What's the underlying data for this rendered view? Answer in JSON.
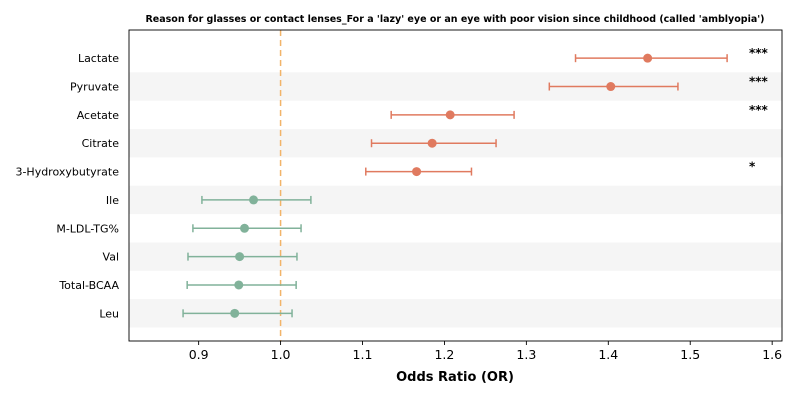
{
  "chart_data": {
    "type": "forest",
    "title": "Reason for glasses or contact lenses_For a 'lazy' eye or an eye with poor vision since childhood (called 'amblyopia')",
    "xlabel": "Odds Ratio (OR)",
    "xlim": [
      0.815,
      1.612
    ],
    "xticks": [
      "0.9",
      "1.0",
      "1.1",
      "1.2",
      "1.3",
      "1.4",
      "1.5",
      "1.6"
    ],
    "reference_line": 1.0,
    "colors": {
      "positive": "#E07A5F",
      "negative": "#81B29A",
      "reference": "#F2B469",
      "stripe": "#F5F5F5"
    },
    "rows": [
      {
        "label": "Lactate",
        "or": 1.448,
        "lo": 1.36,
        "hi": 1.545,
        "sig": "***"
      },
      {
        "label": "Pyruvate",
        "or": 1.403,
        "lo": 1.328,
        "hi": 1.485,
        "sig": "***"
      },
      {
        "label": "Acetate",
        "or": 1.207,
        "lo": 1.135,
        "hi": 1.285,
        "sig": "***"
      },
      {
        "label": "Citrate",
        "or": 1.185,
        "lo": 1.111,
        "hi": 1.263,
        "sig": ""
      },
      {
        "label": "3-Hydroxybutyrate",
        "or": 1.166,
        "lo": 1.104,
        "hi": 1.233,
        "sig": "*"
      },
      {
        "label": "Ile",
        "or": 0.967,
        "lo": 0.904,
        "hi": 1.037,
        "sig": ""
      },
      {
        "label": "M-LDL-TG%",
        "or": 0.956,
        "lo": 0.893,
        "hi": 1.025,
        "sig": ""
      },
      {
        "label": "Val",
        "or": 0.95,
        "lo": 0.887,
        "hi": 1.02,
        "sig": ""
      },
      {
        "label": "Total-BCAA",
        "or": 0.949,
        "lo": 0.886,
        "hi": 1.019,
        "sig": ""
      },
      {
        "label": "Leu",
        "or": 0.944,
        "lo": 0.881,
        "hi": 1.014,
        "sig": ""
      }
    ]
  }
}
